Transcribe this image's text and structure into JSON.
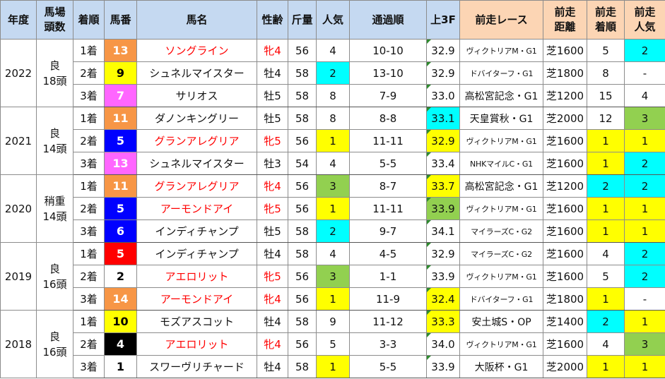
{
  "headers": {
    "year": "年度",
    "field": "馬場\n頭数",
    "place": "着順",
    "umaban": "馬番",
    "name": "馬名",
    "sexage": "性齢",
    "weight": "斤量",
    "pop": "人気",
    "passing": "通過順",
    "last3f": "上3F",
    "prev_race": "前走レース",
    "prev_dist": "前走\n距離",
    "prev_place": "前走\n着順",
    "prev_pop": "前走\n人気"
  },
  "colors": {
    "header_blue": "#c5d9f1",
    "header_orange": "#fcd5b4",
    "yellow": "#ffff00",
    "cyan": "#00ffff",
    "green": "#92d050",
    "red_text": "#ff0000",
    "frame_orange": "#f79646",
    "frame_yellow": "#ffff00",
    "frame_pink": "#ff66ff",
    "frame_blue": "#0000ff",
    "frame_red": "#ff0000",
    "frame_white": "#ffffff",
    "frame_black": "#000000"
  },
  "rows": [
    {
      "year": "2022",
      "field": "良\n18頭",
      "place": "1着",
      "umaban": "13",
      "frame": "#f79646",
      "umaban_color": "#ffffff",
      "name": "ソングライン",
      "name_red": true,
      "sexage": "牝4",
      "sexage_red": true,
      "weight": "56",
      "pop": "4",
      "pop_bg": "",
      "passing": "10-10",
      "last3f": "32.9",
      "last3f_bg": "",
      "prev_race": "ヴィクトリアM・G1",
      "prev_race_small": true,
      "prev_dist": "芝1600",
      "prev_place": "5",
      "prev_place_bg": "",
      "prev_pop": "2",
      "prev_pop_bg": "#00ffff"
    },
    {
      "year": "",
      "field": "",
      "place": "2着",
      "umaban": "9",
      "frame": "#ffff00",
      "umaban_color": "#000000",
      "name": "シュネルマイスター",
      "name_red": false,
      "sexage": "牡4",
      "sexage_red": false,
      "weight": "58",
      "pop": "2",
      "pop_bg": "#00ffff",
      "passing": "13-10",
      "last3f": "32.9",
      "last3f_bg": "",
      "prev_race": "ドバイターフ・G1",
      "prev_race_small": true,
      "prev_dist": "芝1800",
      "prev_place": "8",
      "prev_place_bg": "",
      "prev_pop": "-",
      "prev_pop_bg": ""
    },
    {
      "year": "",
      "field": "",
      "place": "3着",
      "umaban": "7",
      "frame": "#ff66ff",
      "umaban_color": "#ffffff",
      "name": "サリオス",
      "name_red": false,
      "sexage": "牡5",
      "sexage_red": false,
      "weight": "58",
      "pop": "8",
      "pop_bg": "",
      "passing": "7-9",
      "last3f": "33.0",
      "last3f_bg": "",
      "prev_race": "高松宮記念・G1",
      "prev_race_small": false,
      "prev_dist": "芝1200",
      "prev_place": "15",
      "prev_place_bg": "",
      "prev_pop": "4",
      "prev_pop_bg": ""
    },
    {
      "year": "2021",
      "field": "良\n14頭",
      "place": "1着",
      "umaban": "11",
      "frame": "#f79646",
      "umaban_color": "#ffffff",
      "name": "ダノンキングリー",
      "name_red": false,
      "sexage": "牡5",
      "sexage_red": false,
      "weight": "58",
      "pop": "8",
      "pop_bg": "",
      "passing": "8-8",
      "last3f": "33.1",
      "last3f_bg": "#00ffff",
      "prev_race": "天皇賞秋・G1",
      "prev_race_small": false,
      "prev_dist": "芝2000",
      "prev_place": "12",
      "prev_place_bg": "",
      "prev_pop": "3",
      "prev_pop_bg": "#92d050"
    },
    {
      "year": "",
      "field": "",
      "place": "2着",
      "umaban": "5",
      "frame": "#0000ff",
      "umaban_color": "#ffffff",
      "name": "グランアレグリア",
      "name_red": true,
      "sexage": "牝5",
      "sexage_red": true,
      "weight": "56",
      "pop": "1",
      "pop_bg": "#ffff00",
      "passing": "11-11",
      "last3f": "32.9",
      "last3f_bg": "#ffff00",
      "prev_race": "ヴィクトリアM・G1",
      "prev_race_small": true,
      "prev_dist": "芝1600",
      "prev_place": "1",
      "prev_place_bg": "#ffff00",
      "prev_pop": "1",
      "prev_pop_bg": "#ffff00"
    },
    {
      "year": "",
      "field": "",
      "place": "3着",
      "umaban": "13",
      "frame": "#ff66ff",
      "umaban_color": "#ffffff",
      "name": "シュネルマイスター",
      "name_red": false,
      "sexage": "牡3",
      "sexage_red": false,
      "weight": "54",
      "pop": "4",
      "pop_bg": "",
      "passing": "5-5",
      "last3f": "33.4",
      "last3f_bg": "",
      "prev_race": "NHKマイルC・G1",
      "prev_race_small": true,
      "prev_dist": "芝1600",
      "prev_place": "1",
      "prev_place_bg": "#ffff00",
      "prev_pop": "2",
      "prev_pop_bg": "#00ffff"
    },
    {
      "year": "2020",
      "field": "稍重\n14頭",
      "place": "1着",
      "umaban": "11",
      "frame": "#f79646",
      "umaban_color": "#ffffff",
      "name": "グランアレグリア",
      "name_red": true,
      "sexage": "牝4",
      "sexage_red": true,
      "weight": "56",
      "pop": "3",
      "pop_bg": "#92d050",
      "passing": "8-7",
      "last3f": "33.7",
      "last3f_bg": "#ffff00",
      "prev_race": "高松宮記念・G1",
      "prev_race_small": false,
      "prev_dist": "芝1200",
      "prev_place": "2",
      "prev_place_bg": "#00ffff",
      "prev_pop": "2",
      "prev_pop_bg": "#00ffff"
    },
    {
      "year": "",
      "field": "",
      "place": "2着",
      "umaban": "5",
      "frame": "#0000ff",
      "umaban_color": "#ffffff",
      "name": "アーモンドアイ",
      "name_red": true,
      "sexage": "牝5",
      "sexage_red": true,
      "weight": "56",
      "pop": "1",
      "pop_bg": "#ffff00",
      "passing": "11-11",
      "last3f": "33.9",
      "last3f_bg": "#92d050",
      "prev_race": "ヴィクトリアM・G1",
      "prev_race_small": true,
      "prev_dist": "芝1600",
      "prev_place": "1",
      "prev_place_bg": "#ffff00",
      "prev_pop": "1",
      "prev_pop_bg": "#ffff00"
    },
    {
      "year": "",
      "field": "",
      "place": "3着",
      "umaban": "6",
      "frame": "#0000ff",
      "umaban_color": "#ffffff",
      "name": "インディチャンプ",
      "name_red": false,
      "sexage": "牡5",
      "sexage_red": false,
      "weight": "58",
      "pop": "2",
      "pop_bg": "#00ffff",
      "passing": "9-7",
      "last3f": "34.1",
      "last3f_bg": "",
      "prev_race": "マイラーズC・G2",
      "prev_race_small": true,
      "prev_dist": "芝1600",
      "prev_place": "1",
      "prev_place_bg": "#ffff00",
      "prev_pop": "1",
      "prev_pop_bg": "#ffff00"
    },
    {
      "year": "2019",
      "field": "良\n16頭",
      "place": "1着",
      "umaban": "5",
      "frame": "#ff0000",
      "umaban_color": "#ffffff",
      "name": "インディチャンプ",
      "name_red": false,
      "sexage": "牡4",
      "sexage_red": false,
      "weight": "58",
      "pop": "4",
      "pop_bg": "",
      "passing": "4-5",
      "last3f": "32.9",
      "last3f_bg": "",
      "prev_race": "マイラーズC・G2",
      "prev_race_small": true,
      "prev_dist": "芝1600",
      "prev_place": "4",
      "prev_place_bg": "",
      "prev_pop": "2",
      "prev_pop_bg": "#00ffff"
    },
    {
      "year": "",
      "field": "",
      "place": "2着",
      "umaban": "2",
      "frame": "#ffffff",
      "umaban_color": "#000000",
      "name": "アエロリット",
      "name_red": true,
      "sexage": "牝5",
      "sexage_red": true,
      "weight": "56",
      "pop": "3",
      "pop_bg": "#92d050",
      "passing": "1-1",
      "last3f": "33.9",
      "last3f_bg": "",
      "prev_race": "ヴィクトリアM・G1",
      "prev_race_small": true,
      "prev_dist": "芝1600",
      "prev_place": "5",
      "prev_place_bg": "",
      "prev_pop": "2",
      "prev_pop_bg": "#00ffff"
    },
    {
      "year": "",
      "field": "",
      "place": "3着",
      "umaban": "14",
      "frame": "#f79646",
      "umaban_color": "#ffffff",
      "name": "アーモンドアイ",
      "name_red": true,
      "sexage": "牝4",
      "sexage_red": true,
      "weight": "56",
      "pop": "1",
      "pop_bg": "#ffff00",
      "passing": "11-9",
      "last3f": "32.4",
      "last3f_bg": "#ffff00",
      "prev_race": "ドバイターフ・G1",
      "prev_race_small": true,
      "prev_dist": "芝1800",
      "prev_place": "1",
      "prev_place_bg": "#ffff00",
      "prev_pop": "-",
      "prev_pop_bg": ""
    },
    {
      "year": "2018",
      "field": "良\n16頭",
      "place": "1着",
      "umaban": "10",
      "frame": "#ffff00",
      "umaban_color": "#000000",
      "name": "モズアスコット",
      "name_red": false,
      "sexage": "牡4",
      "sexage_red": false,
      "weight": "58",
      "pop": "9",
      "pop_bg": "",
      "passing": "11-12",
      "last3f": "33.3",
      "last3f_bg": "#ffff00",
      "prev_race": "安土城S・OP",
      "prev_race_small": false,
      "prev_dist": "芝1400",
      "prev_place": "2",
      "prev_place_bg": "#00ffff",
      "prev_pop": "1",
      "prev_pop_bg": "#ffff00"
    },
    {
      "year": "",
      "field": "",
      "place": "2着",
      "umaban": "4",
      "frame": "#000000",
      "umaban_color": "#ffffff",
      "name": "アエロリット",
      "name_red": true,
      "sexage": "牝4",
      "sexage_red": true,
      "weight": "56",
      "pop": "5",
      "pop_bg": "",
      "passing": "3-3",
      "last3f": "34.0",
      "last3f_bg": "",
      "prev_race": "ヴィクトリアM・G1",
      "prev_race_small": true,
      "prev_dist": "芝1600",
      "prev_place": "4",
      "prev_place_bg": "",
      "prev_pop": "3",
      "prev_pop_bg": "#92d050"
    },
    {
      "year": "",
      "field": "",
      "place": "3着",
      "umaban": "1",
      "frame": "#ffffff",
      "umaban_color": "#000000",
      "name": "スワーヴリチャード",
      "name_red": false,
      "sexage": "牡4",
      "sexage_red": false,
      "weight": "58",
      "pop": "1",
      "pop_bg": "#ffff00",
      "passing": "5-5",
      "last3f": "33.9",
      "last3f_bg": "",
      "prev_race": "大阪杯・G1",
      "prev_race_small": false,
      "prev_dist": "芝2000",
      "prev_place": "1",
      "prev_place_bg": "#ffff00",
      "prev_pop": "1",
      "prev_pop_bg": "#ffff00"
    }
  ]
}
